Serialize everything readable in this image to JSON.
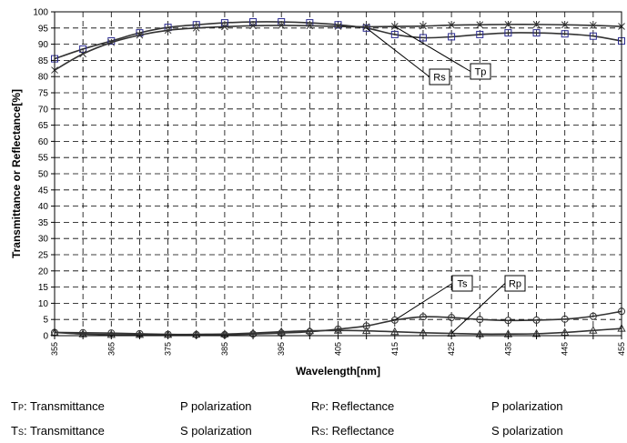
{
  "chart_data": {
    "type": "line",
    "title": "",
    "xlabel": "Wavelength[nm]",
    "ylabel": "Transmittance or Reflectance[%]",
    "xlim": [
      355,
      455
    ],
    "ylim": [
      0,
      100
    ],
    "x_ticks": [
      "355",
      "365",
      "375",
      "385",
      "395",
      "405",
      "415",
      "425",
      "435",
      "445",
      "455"
    ],
    "y_ticks": [
      "0",
      "5",
      "10",
      "15",
      "20",
      "25",
      "30",
      "35",
      "40",
      "45",
      "50",
      "55",
      "60",
      "65",
      "70",
      "75",
      "80",
      "85",
      "90",
      "95",
      "100"
    ],
    "grid": true,
    "series": [
      {
        "name": "Rs",
        "marker": "square",
        "x": [
          355,
          360,
          365,
          370,
          375,
          380,
          385,
          390,
          395,
          400,
          405,
          410,
          415,
          420,
          425,
          430,
          435,
          440,
          445,
          450,
          455
        ],
        "values": [
          85.5,
          88.5,
          91.0,
          93.5,
          95.2,
          96.0,
          96.6,
          96.9,
          96.9,
          96.6,
          96.0,
          95.0,
          93.0,
          92.0,
          92.3,
          93.0,
          93.5,
          93.5,
          93.2,
          92.5,
          91.0
        ]
      },
      {
        "name": "Tp",
        "marker": "x",
        "x": [
          355,
          360,
          365,
          370,
          375,
          380,
          385,
          390,
          395,
          400,
          405,
          410,
          415,
          420,
          425,
          430,
          435,
          440,
          445,
          450,
          455
        ],
        "values": [
          82.0,
          87.0,
          90.5,
          92.8,
          94.3,
          95.0,
          95.4,
          95.7,
          95.8,
          95.7,
          95.5,
          95.4,
          95.5,
          95.6,
          95.9,
          96.0,
          96.1,
          96.1,
          96.0,
          95.8,
          95.5
        ]
      },
      {
        "name": "Ts",
        "marker": "circle",
        "x": [
          355,
          360,
          365,
          370,
          375,
          380,
          385,
          390,
          395,
          400,
          405,
          410,
          415,
          420,
          425,
          430,
          435,
          440,
          445,
          450,
          455
        ],
        "values": [
          1.0,
          0.9,
          0.8,
          0.6,
          0.4,
          0.3,
          0.3,
          0.5,
          0.8,
          1.2,
          2.0,
          3.0,
          4.8,
          5.8,
          5.6,
          5.0,
          4.7,
          4.8,
          5.1,
          6.0,
          7.5
        ]
      },
      {
        "name": "Rp",
        "marker": "triangle",
        "x": [
          355,
          360,
          365,
          370,
          375,
          380,
          385,
          390,
          395,
          400,
          405,
          410,
          415,
          420,
          425,
          430,
          435,
          440,
          445,
          450,
          455
        ],
        "values": [
          1.0,
          0.5,
          0.3,
          0.3,
          0.3,
          0.4,
          0.5,
          0.8,
          1.2,
          1.5,
          1.6,
          1.5,
          1.2,
          0.9,
          0.7,
          0.5,
          0.5,
          0.6,
          1.0,
          1.6,
          2.2
        ]
      }
    ],
    "annotations": [
      {
        "label": "Rs"
      },
      {
        "label": "Tp"
      },
      {
        "label": "Ts"
      },
      {
        "label": "Rp"
      }
    ]
  },
  "legend": {
    "rows": [
      {
        "sym_main": "T",
        "sym_sub": "P",
        "term": ": Transmittance",
        "pol": "P polarization",
        "sym2_main": "R",
        "sym2_sub": "P",
        "term2": ": Reflectance",
        "pol2": "P polarization"
      },
      {
        "sym_main": "T",
        "sym_sub": "S",
        "term": ": Transmittance",
        "pol": "S polarization",
        "sym2_main": "R",
        "sym2_sub": "S",
        "term2": ": Reflectance",
        "pol2": "S polarization"
      }
    ]
  }
}
